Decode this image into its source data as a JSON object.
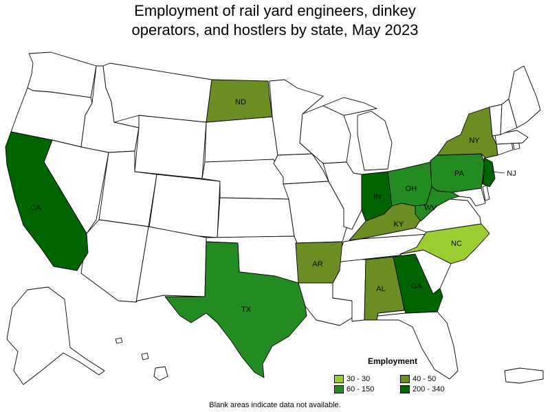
{
  "title_line1": "Employment of rail yard engineers, dinkey",
  "title_line2": "operators, and hostlers by state, May 2023",
  "legend": {
    "title": "Employment",
    "items": [
      {
        "label": "30 - 30",
        "color": "#9acd32"
      },
      {
        "label": "40 - 50",
        "color": "#6b8e23"
      },
      {
        "label": "60 - 150",
        "color": "#228b22"
      },
      {
        "label": "200 - 340",
        "color": "#006400"
      }
    ]
  },
  "footnote": "Blank areas indicate data not available.",
  "states": [
    {
      "abbr": "CA",
      "range": "200 - 340",
      "color": "#006400"
    },
    {
      "abbr": "ND",
      "range": "40 - 50",
      "color": "#6b8e23"
    },
    {
      "abbr": "TX",
      "range": "60 - 150",
      "color": "#228b22"
    },
    {
      "abbr": "AR",
      "range": "40 - 50",
      "color": "#6b8e23"
    },
    {
      "abbr": "IN",
      "range": "200 - 340",
      "color": "#006400"
    },
    {
      "abbr": "OH",
      "range": "60 - 150",
      "color": "#228b22"
    },
    {
      "abbr": "KY",
      "range": "40 - 50",
      "color": "#6b8e23"
    },
    {
      "abbr": "WV",
      "range": "60 - 150",
      "color": "#228b22"
    },
    {
      "abbr": "PA",
      "range": "60 - 150",
      "color": "#228b22"
    },
    {
      "abbr": "NY",
      "range": "40 - 50",
      "color": "#6b8e23"
    },
    {
      "abbr": "NJ",
      "range": "200 - 340",
      "color": "#006400"
    },
    {
      "abbr": "NC",
      "range": "30 - 30",
      "color": "#9acd32"
    },
    {
      "abbr": "AL",
      "range": "40 - 50",
      "color": "#6b8e23"
    },
    {
      "abbr": "GA",
      "range": "200 - 340",
      "color": "#006400"
    }
  ]
}
